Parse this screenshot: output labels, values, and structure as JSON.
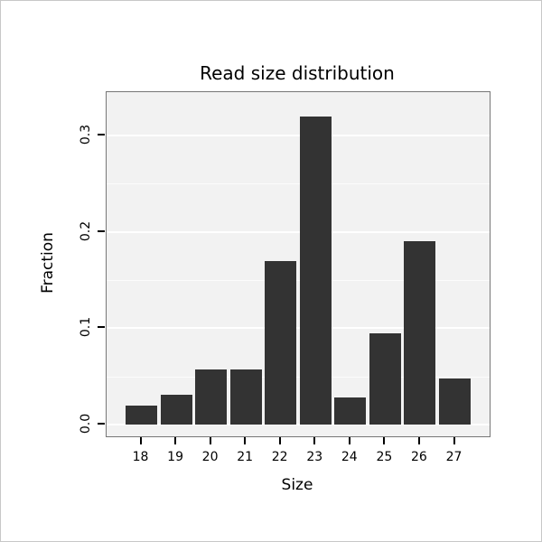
{
  "chart_data": {
    "type": "bar",
    "title": "Read size distribution",
    "xlabel": "Size",
    "ylabel": "Fraction",
    "categories": [
      "18",
      "19",
      "20",
      "21",
      "22",
      "23",
      "24",
      "25",
      "26",
      "27"
    ],
    "values": [
      0.02,
      0.031,
      0.057,
      0.057,
      0.17,
      0.32,
      0.028,
      0.095,
      0.19,
      0.048
    ],
    "ylim": [
      0,
      0.345
    ],
    "y_ticks": [
      0,
      0.1,
      0.2,
      0.3
    ],
    "y_tick_labels": [
      "0.0",
      "0.1",
      "0.2",
      "0.3"
    ],
    "y_minor_gridlines": [
      0.05,
      0.15,
      0.25
    ],
    "grid": true,
    "legend": false,
    "bar_color": "#333333",
    "panel_background": "#f2f2f2",
    "gridline_color": "#ffffff",
    "panel_border_color": "#777777",
    "tick_color": "#000000"
  }
}
